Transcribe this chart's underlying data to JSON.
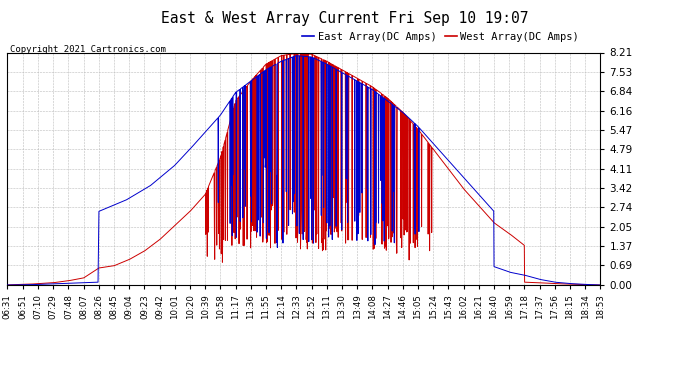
{
  "title": "East & West Array Current Fri Sep 10 19:07",
  "copyright": "Copyright 2021 Cartronics.com",
  "legend_east": "East Array(DC Amps)",
  "legend_west": "West Array(DC Amps)",
  "east_color": "#0000cc",
  "west_color": "#cc0000",
  "background_color": "#ffffff",
  "grid_color": "#bbbbbb",
  "yticks": [
    0.0,
    0.69,
    1.37,
    2.05,
    2.74,
    3.42,
    4.11,
    4.79,
    5.47,
    6.16,
    6.84,
    7.53,
    8.21
  ],
  "xtick_labels": [
    "06:31",
    "06:51",
    "07:10",
    "07:29",
    "07:48",
    "08:07",
    "08:26",
    "08:45",
    "09:04",
    "09:23",
    "09:42",
    "10:01",
    "10:20",
    "10:39",
    "10:58",
    "11:17",
    "11:36",
    "11:55",
    "12:14",
    "12:33",
    "12:52",
    "13:11",
    "13:30",
    "13:49",
    "14:08",
    "14:27",
    "14:46",
    "15:05",
    "15:24",
    "15:43",
    "16:02",
    "16:21",
    "16:40",
    "16:59",
    "17:18",
    "17:37",
    "17:56",
    "18:15",
    "18:34",
    "18:53"
  ],
  "ymax": 8.21,
  "ymin": 0.0
}
